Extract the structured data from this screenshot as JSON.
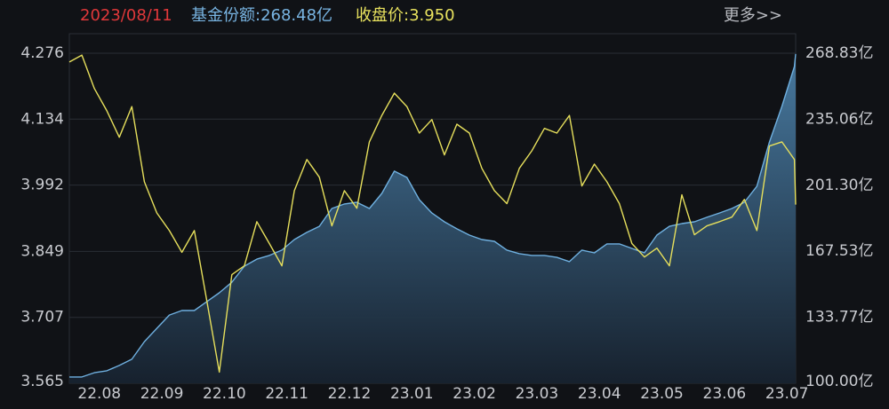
{
  "chart_data": {
    "type": "line",
    "header": {
      "date": "2023/08/11",
      "fund_share": "基金份额:268.48亿",
      "close": "收盘价:3.950",
      "more": "更多>>"
    },
    "x": [
      -0.48,
      -0.28,
      -0.08,
      0.12,
      0.32,
      0.52,
      0.72,
      0.92,
      1.12,
      1.32,
      1.52,
      1.72,
      1.92,
      2.12,
      2.32,
      2.52,
      2.72,
      2.92,
      3.12,
      3.32,
      3.52,
      3.72,
      3.92,
      4.12,
      4.32,
      4.52,
      4.72,
      4.92,
      5.12,
      5.32,
      5.52,
      5.72,
      5.92,
      6.12,
      6.32,
      6.52,
      6.72,
      6.92,
      7.12,
      7.32,
      7.52,
      7.72,
      7.92,
      8.12,
      8.32,
      8.52,
      8.72,
      8.92,
      9.12,
      9.32,
      9.52,
      9.72,
      9.92,
      10.12,
      10.32,
      10.52,
      10.72,
      10.92,
      11.12,
      11.14
    ],
    "xlim": [
      -0.48,
      11.14
    ],
    "xticks": [
      {
        "value": 0,
        "label": "22.08"
      },
      {
        "value": 1,
        "label": "22.09"
      },
      {
        "value": 2,
        "label": "22.10"
      },
      {
        "value": 3,
        "label": "22.11"
      },
      {
        "value": 4,
        "label": "22.12"
      },
      {
        "value": 5,
        "label": "23.01"
      },
      {
        "value": 6,
        "label": "23.02"
      },
      {
        "value": 7,
        "label": "23.03"
      },
      {
        "value": 8,
        "label": "23.04"
      },
      {
        "value": 9,
        "label": "23.05"
      },
      {
        "value": 10,
        "label": "23.06"
      },
      {
        "value": 11,
        "label": "23.07"
      }
    ],
    "ylim": [
      3.565,
      4.318
    ],
    "yticks": [
      3.565,
      3.707,
      3.849,
      3.992,
      4.134,
      4.276
    ],
    "y2lim": [
      100,
      278.81
    ],
    "y2ticks": [
      {
        "value": 100,
        "label": "100.00亿"
      },
      {
        "value": 133.77,
        "label": "133.77亿"
      },
      {
        "value": 167.53,
        "label": "167.53亿"
      },
      {
        "value": 201.3,
        "label": "201.30亿"
      },
      {
        "value": 235.06,
        "label": "235.06亿"
      },
      {
        "value": 268.83,
        "label": "268.83亿"
      }
    ],
    "grid": true,
    "series": [
      {
        "color": "#6fb0e0",
        "axis": "y2",
        "style": "area",
        "values": [
          103.2,
          103.2,
          105.4,
          106.4,
          109.1,
          112.3,
          121.3,
          128.1,
          134.9,
          137.2,
          137.2,
          141.8,
          146.3,
          151.7,
          159.9,
          163.5,
          165.4,
          168.1,
          173.5,
          177.2,
          180.3,
          189.4,
          191.7,
          192.6,
          189.4,
          197.1,
          208.5,
          205.3,
          193.9,
          187.1,
          182.6,
          179.0,
          175.8,
          173.5,
          172.6,
          168.1,
          166.3,
          165.4,
          165.4,
          164.4,
          162.2,
          168.1,
          166.7,
          171.3,
          171.3,
          169.0,
          166.7,
          175.8,
          180.3,
          181.7,
          182.6,
          184.9,
          187.1,
          189.4,
          192.6,
          200.8,
          223.4,
          241.6,
          262.0,
          268.48
        ]
      },
      {
        "color": "#e6df5c",
        "axis": "y",
        "style": "line",
        "values": [
          4.257,
          4.272,
          4.2,
          4.152,
          4.095,
          4.161,
          3.999,
          3.932,
          3.894,
          3.847,
          3.894,
          3.742,
          3.589,
          3.799,
          3.818,
          3.913,
          3.866,
          3.818,
          3.98,
          4.047,
          4.009,
          3.904,
          3.98,
          3.942,
          4.085,
          4.142,
          4.19,
          4.161,
          4.104,
          4.133,
          4.057,
          4.123,
          4.104,
          4.028,
          3.98,
          3.952,
          4.028,
          4.066,
          4.114,
          4.104,
          4.142,
          3.99,
          4.037,
          3.999,
          3.952,
          3.866,
          3.837,
          3.856,
          3.818,
          3.971,
          3.885,
          3.904,
          3.913,
          3.923,
          3.961,
          3.894,
          4.076,
          4.085,
          4.047,
          3.95
        ]
      }
    ]
  }
}
